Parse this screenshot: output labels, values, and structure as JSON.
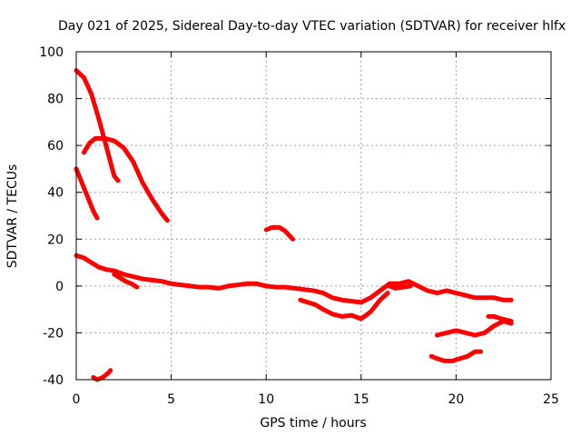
{
  "chart_data": {
    "type": "scatter",
    "title": "Day 021 of 2025, Sidereal Day-to-day VTEC variation (SDTVAR) for receiver hlfx",
    "xlabel": "GPS time / hours",
    "ylabel": "SDTVAR / TECUs",
    "xlim": [
      0,
      25
    ],
    "ylim": [
      -40,
      100
    ],
    "xticks": [
      0,
      5,
      10,
      15,
      20,
      25
    ],
    "yticks": [
      -40,
      -20,
      0,
      20,
      40,
      60,
      80,
      100
    ],
    "grid": true,
    "color": "#ff0000",
    "series": [
      {
        "name": "arc-1",
        "points": [
          [
            0.0,
            92
          ],
          [
            0.4,
            89
          ],
          [
            0.8,
            82
          ],
          [
            1.2,
            71
          ],
          [
            1.6,
            59
          ],
          [
            2.0,
            47
          ],
          [
            2.2,
            45
          ]
        ]
      },
      {
        "name": "arc-2",
        "points": [
          [
            0.4,
            57
          ],
          [
            0.7,
            61
          ],
          [
            1.0,
            63
          ],
          [
            1.5,
            63
          ],
          [
            2.0,
            62
          ],
          [
            2.5,
            59
          ],
          [
            3.0,
            53
          ],
          [
            3.5,
            44
          ],
          [
            4.0,
            37
          ],
          [
            4.5,
            31
          ],
          [
            4.8,
            28
          ]
        ]
      },
      {
        "name": "arc-3",
        "points": [
          [
            0.0,
            50
          ],
          [
            0.3,
            44
          ],
          [
            0.6,
            38
          ],
          [
            0.9,
            32
          ],
          [
            1.1,
            29
          ]
        ]
      },
      {
        "name": "arc-4",
        "points": [
          [
            10.0,
            24
          ],
          [
            10.3,
            25
          ],
          [
            10.7,
            25
          ],
          [
            11.0,
            23.5
          ],
          [
            11.4,
            20
          ]
        ]
      },
      {
        "name": "arc-5",
        "points": [
          [
            0.9,
            -39
          ],
          [
            1.1,
            -40
          ],
          [
            1.4,
            -39
          ],
          [
            1.7,
            -37
          ],
          [
            1.8,
            -36
          ]
        ]
      },
      {
        "name": "arc-6",
        "points": [
          [
            0.0,
            13
          ],
          [
            0.4,
            12
          ],
          [
            0.8,
            10
          ],
          [
            1.2,
            8
          ],
          [
            1.6,
            7
          ],
          [
            2.0,
            6.5
          ],
          [
            2.5,
            5
          ],
          [
            3.0,
            4
          ],
          [
            3.5,
            3
          ],
          [
            4.0,
            2.5
          ],
          [
            4.5,
            2
          ],
          [
            5.0,
            1
          ],
          [
            5.5,
            0.5
          ],
          [
            6.0,
            0
          ],
          [
            6.5,
            -0.5
          ],
          [
            7.0,
            -0.5
          ],
          [
            7.5,
            -1
          ],
          [
            8.0,
            0
          ],
          [
            8.5,
            0.5
          ],
          [
            9.0,
            1
          ],
          [
            9.5,
            1
          ],
          [
            10.0,
            0
          ],
          [
            10.5,
            -0.5
          ],
          [
            11.0,
            -0.5
          ],
          [
            11.5,
            -1
          ],
          [
            12.0,
            -1.5
          ],
          [
            12.5,
            -2
          ],
          [
            13.0,
            -3
          ],
          [
            13.5,
            -5
          ],
          [
            14.0,
            -6
          ],
          [
            14.5,
            -6.5
          ],
          [
            15.0,
            -7
          ],
          [
            15.5,
            -5
          ],
          [
            16.0,
            -2
          ],
          [
            16.5,
            1
          ],
          [
            17.0,
            1
          ],
          [
            17.5,
            2
          ],
          [
            18.0,
            0
          ],
          [
            18.5,
            -2
          ],
          [
            19.0,
            -3
          ],
          [
            19.5,
            -2
          ],
          [
            20.0,
            -3
          ],
          [
            20.5,
            -4
          ],
          [
            21.0,
            -5
          ],
          [
            21.5,
            -5
          ],
          [
            22.0,
            -5
          ],
          [
            22.5,
            -6
          ],
          [
            22.9,
            -6
          ]
        ]
      },
      {
        "name": "arc-7",
        "points": [
          [
            2.0,
            5
          ],
          [
            2.3,
            3.5
          ],
          [
            2.6,
            2
          ],
          [
            2.9,
            1
          ],
          [
            3.2,
            -0.5
          ]
        ]
      },
      {
        "name": "arc-8",
        "points": [
          [
            11.8,
            -6
          ],
          [
            12.2,
            -7
          ],
          [
            12.6,
            -8
          ],
          [
            13.0,
            -10
          ],
          [
            13.5,
            -12
          ],
          [
            14.0,
            -13
          ],
          [
            14.5,
            -12.5
          ],
          [
            15.0,
            -14
          ],
          [
            15.5,
            -11
          ],
          [
            16.0,
            -6
          ],
          [
            16.4,
            -3
          ]
        ]
      },
      {
        "name": "arc-9",
        "points": [
          [
            16.5,
            0
          ],
          [
            16.8,
            -1
          ],
          [
            17.2,
            -0.5
          ],
          [
            17.6,
            0
          ]
        ]
      },
      {
        "name": "arc-10",
        "points": [
          [
            18.7,
            -30
          ],
          [
            19.0,
            -31
          ],
          [
            19.4,
            -32
          ],
          [
            19.8,
            -32
          ],
          [
            20.2,
            -31
          ],
          [
            20.6,
            -30
          ],
          [
            21.0,
            -28
          ],
          [
            21.3,
            -28
          ]
        ]
      },
      {
        "name": "arc-11",
        "points": [
          [
            19.0,
            -21
          ],
          [
            19.5,
            -20
          ],
          [
            20.0,
            -19
          ],
          [
            20.5,
            -20
          ],
          [
            21.0,
            -21
          ],
          [
            21.5,
            -20
          ],
          [
            22.0,
            -17
          ],
          [
            22.5,
            -15
          ],
          [
            22.9,
            -16
          ]
        ]
      },
      {
        "name": "arc-12",
        "points": [
          [
            21.7,
            -13
          ],
          [
            22.0,
            -13
          ],
          [
            22.4,
            -14
          ],
          [
            22.9,
            -15
          ]
        ]
      }
    ]
  }
}
